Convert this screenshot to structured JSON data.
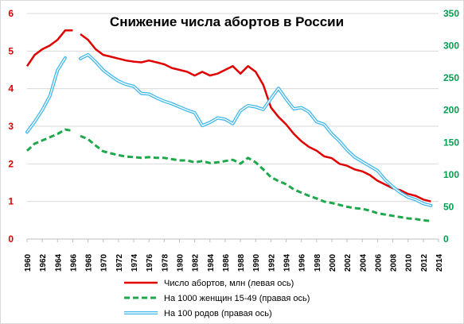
{
  "chart_data": {
    "type": "line",
    "title": "Снижение числа абортов в России",
    "x_ticks": [
      "1960",
      "1962",
      "1964",
      "1966",
      "1968",
      "1970",
      "1972",
      "1974",
      "1976",
      "1978",
      "1980",
      "1982",
      "1984",
      "1986",
      "1988",
      "1990",
      "1992",
      "1994",
      "1996",
      "1998",
      "2000",
      "2002",
      "2004",
      "2006",
      "2008",
      "2010",
      "2012",
      "2014"
    ],
    "xlim": [
      1960,
      2014
    ],
    "y_left": {
      "ticks": [
        "0",
        "1",
        "2",
        "3",
        "4",
        "5",
        "6"
      ],
      "ylim": [
        0,
        6
      ],
      "color": "#e00000"
    },
    "y_right": {
      "ticks": [
        "0",
        "50",
        "100",
        "150",
        "200",
        "250",
        "300",
        "350"
      ],
      "ylim": [
        0,
        350
      ],
      "color": "#00a050"
    },
    "grid": true,
    "legend_position": "bottom",
    "series": [
      {
        "name": "Число абортов, млн (левая ось)",
        "axis": "left",
        "color": "#e00000",
        "style": "solid",
        "segments": [
          [
            [
              1960,
              4.6
            ],
            [
              1961,
              4.9
            ],
            [
              1962,
              5.05
            ],
            [
              1963,
              5.15
            ],
            [
              1964,
              5.3
            ],
            [
              1965,
              5.55
            ],
            [
              1966,
              5.55
            ]
          ],
          [
            [
              1967,
              5.45
            ],
            [
              1968,
              5.3
            ],
            [
              1969,
              5.05
            ],
            [
              1970,
              4.9
            ],
            [
              1971,
              4.85
            ],
            [
              1972,
              4.8
            ],
            [
              1973,
              4.75
            ],
            [
              1974,
              4.72
            ],
            [
              1975,
              4.7
            ],
            [
              1976,
              4.75
            ],
            [
              1977,
              4.7
            ],
            [
              1978,
              4.65
            ],
            [
              1979,
              4.55
            ],
            [
              1980,
              4.5
            ],
            [
              1981,
              4.45
            ],
            [
              1982,
              4.35
            ],
            [
              1983,
              4.45
            ],
            [
              1984,
              4.35
            ],
            [
              1985,
              4.4
            ],
            [
              1986,
              4.5
            ],
            [
              1987,
              4.6
            ],
            [
              1988,
              4.4
            ],
            [
              1989,
              4.6
            ],
            [
              1990,
              4.45
            ],
            [
              1991,
              4.1
            ],
            [
              1992,
              3.5
            ],
            [
              1993,
              3.25
            ],
            [
              1994,
              3.05
            ],
            [
              1995,
              2.8
            ],
            [
              1996,
              2.6
            ],
            [
              1997,
              2.45
            ],
            [
              1998,
              2.35
            ],
            [
              1999,
              2.2
            ],
            [
              2000,
              2.15
            ],
            [
              2001,
              2.0
            ],
            [
              2002,
              1.95
            ],
            [
              2003,
              1.85
            ],
            [
              2004,
              1.8
            ],
            [
              2005,
              1.7
            ],
            [
              2006,
              1.55
            ],
            [
              2007,
              1.45
            ],
            [
              2008,
              1.35
            ],
            [
              2009,
              1.3
            ],
            [
              2010,
              1.2
            ],
            [
              2011,
              1.15
            ],
            [
              2012,
              1.05
            ],
            [
              2013,
              1.0
            ]
          ]
        ]
      },
      {
        "name": "На 1000 женщин 15-49 (правая ось)",
        "axis": "right",
        "color": "#1ea84b",
        "style": "dashed",
        "segments": [
          [
            [
              1960,
              137
            ],
            [
              1961,
              148
            ],
            [
              1962,
              153
            ],
            [
              1963,
              158
            ],
            [
              1964,
              163
            ],
            [
              1965,
              170
            ],
            [
              1966,
              168
            ]
          ],
          [
            [
              1967,
              160
            ],
            [
              1968,
              155
            ],
            [
              1969,
              145
            ],
            [
              1970,
              136
            ],
            [
              1971,
              133
            ],
            [
              1972,
              130
            ],
            [
              1973,
              128
            ],
            [
              1974,
              127
            ],
            [
              1975,
              126
            ],
            [
              1976,
              127
            ],
            [
              1977,
              126
            ],
            [
              1978,
              126
            ],
            [
              1979,
              124
            ],
            [
              1980,
              122
            ],
            [
              1981,
              122
            ],
            [
              1982,
              119
            ],
            [
              1983,
              121
            ],
            [
              1984,
              118
            ],
            [
              1985,
              119
            ],
            [
              1986,
              121
            ],
            [
              1987,
              123
            ],
            [
              1988,
              117
            ],
            [
              1989,
              126
            ],
            [
              1990,
              119
            ],
            [
              1991,
              108
            ],
            [
              1992,
              96
            ],
            [
              1993,
              90
            ],
            [
              1994,
              85
            ],
            [
              1995,
              77
            ],
            [
              1996,
              72
            ],
            [
              1997,
              67
            ],
            [
              1998,
              63
            ],
            [
              1999,
              58
            ],
            [
              2000,
              56
            ],
            [
              2001,
              53
            ],
            [
              2002,
              50
            ],
            [
              2003,
              48
            ],
            [
              2004,
              47
            ],
            [
              2005,
              44
            ],
            [
              2006,
              40
            ],
            [
              2007,
              38
            ],
            [
              2008,
              36
            ],
            [
              2009,
              34
            ],
            [
              2010,
              32
            ],
            [
              2011,
              31
            ],
            [
              2012,
              29
            ],
            [
              2013,
              28
            ]
          ]
        ]
      },
      {
        "name": "На 100 родов  (правая ось)",
        "axis": "right",
        "color": "#3fb7ea",
        "style": "double",
        "segments": [
          [
            [
              1960,
              166
            ],
            [
              1961,
              182
            ],
            [
              1962,
              200
            ],
            [
              1963,
              222
            ],
            [
              1964,
              262
            ],
            [
              1965,
              281
            ]
          ],
          [
            [
              1967,
              280
            ],
            [
              1968,
              286
            ],
            [
              1969,
              275
            ],
            [
              1970,
              262
            ],
            [
              1971,
              253
            ],
            [
              1972,
              245
            ],
            [
              1973,
              240
            ],
            [
              1974,
              237
            ],
            [
              1975,
              226
            ],
            [
              1976,
              225
            ],
            [
              1977,
              219
            ],
            [
              1978,
              214
            ],
            [
              1979,
              210
            ],
            [
              1980,
              205
            ],
            [
              1981,
              200
            ],
            [
              1982,
              196
            ],
            [
              1983,
              176
            ],
            [
              1984,
              181
            ],
            [
              1985,
              188
            ],
            [
              1986,
              186
            ],
            [
              1987,
              179
            ],
            [
              1988,
              199
            ],
            [
              1989,
              207
            ],
            [
              1990,
              205
            ],
            [
              1991,
              201
            ],
            [
              1992,
              218
            ],
            [
              1993,
              234
            ],
            [
              1994,
              217
            ],
            [
              1995,
              202
            ],
            [
              1996,
              204
            ],
            [
              1997,
              197
            ],
            [
              1998,
              182
            ],
            [
              1999,
              178
            ],
            [
              2000,
              163
            ],
            [
              2001,
              152
            ],
            [
              2002,
              138
            ],
            [
              2003,
              127
            ],
            [
              2004,
              120
            ],
            [
              2005,
              113
            ],
            [
              2006,
              106
            ],
            [
              2007,
              92
            ],
            [
              2008,
              81
            ],
            [
              2009,
              72
            ],
            [
              2010,
              65
            ],
            [
              2011,
              61
            ],
            [
              2012,
              55
            ],
            [
              2013,
              52
            ]
          ]
        ]
      }
    ]
  }
}
